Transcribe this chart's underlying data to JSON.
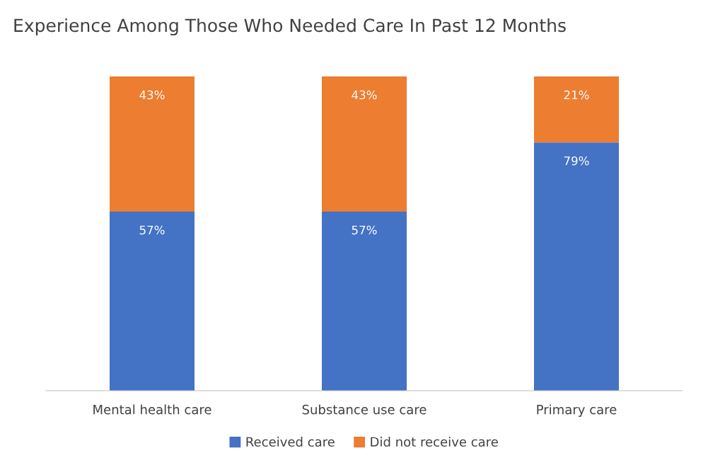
{
  "chart_data": {
    "type": "bar",
    "title": "Experience Among Those Who Needed Care In Past 12 Months",
    "categories": [
      "Mental health care",
      "Substance use care",
      "Primary care"
    ],
    "stacked": true,
    "series": [
      {
        "name": "Received care",
        "color": "#4472c4",
        "values": [
          57,
          57,
          79
        ],
        "value_labels": [
          "57%",
          "57%",
          "79%"
        ]
      },
      {
        "name": "Did not receive care",
        "color": "#ed7d31",
        "values": [
          43,
          43,
          21
        ],
        "value_labels": [
          "43%",
          "43%",
          "21%"
        ]
      }
    ],
    "grid": false,
    "legend": "bottom"
  }
}
